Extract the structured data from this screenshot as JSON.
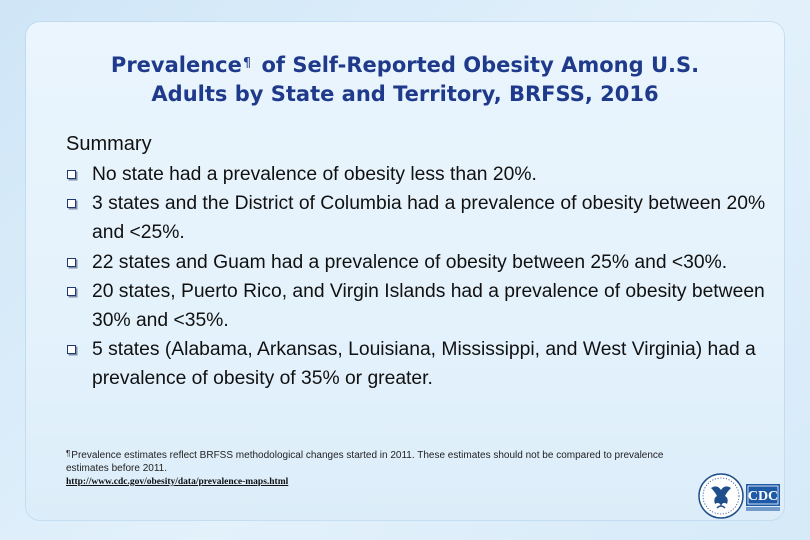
{
  "title": {
    "part1": "Prevalence",
    "mark": "¶",
    "part2": " of Self-Reported Obesity Among U.S.",
    "line2": "Adults by State and Territory, BRFSS, 2016"
  },
  "summary_heading": "Summary",
  "bullets": [
    "No state had a prevalence of obesity less than 20%.",
    "3 states and the District of Columbia had a prevalence of obesity between 20% and <25%.",
    "22 states and Guam had a prevalence of obesity between 25% and <30%.",
    "20 states, Puerto Rico, and Virgin Islands had a prevalence of obesity between 30% and <35%.",
    "5 states (Alabama, Arkansas, Louisiana, Mississippi, and West Virginia) had a prevalence of obesity of 35% or greater."
  ],
  "footnote": {
    "mark": "¶",
    "text": "Prevalence estimates reflect BRFSS methodological changes started in 2011. These estimates should not be compared to prevalence estimates before 2011."
  },
  "url": "http://www.cdc.gov/obesity/data/prevalence-maps.html",
  "logos": {
    "hhs_icon": "hhs-eagle-icon",
    "cdc_text": "CDC",
    "colors": {
      "hhs": "#1f4e8c",
      "cdc": "#1f5aa6"
    }
  }
}
